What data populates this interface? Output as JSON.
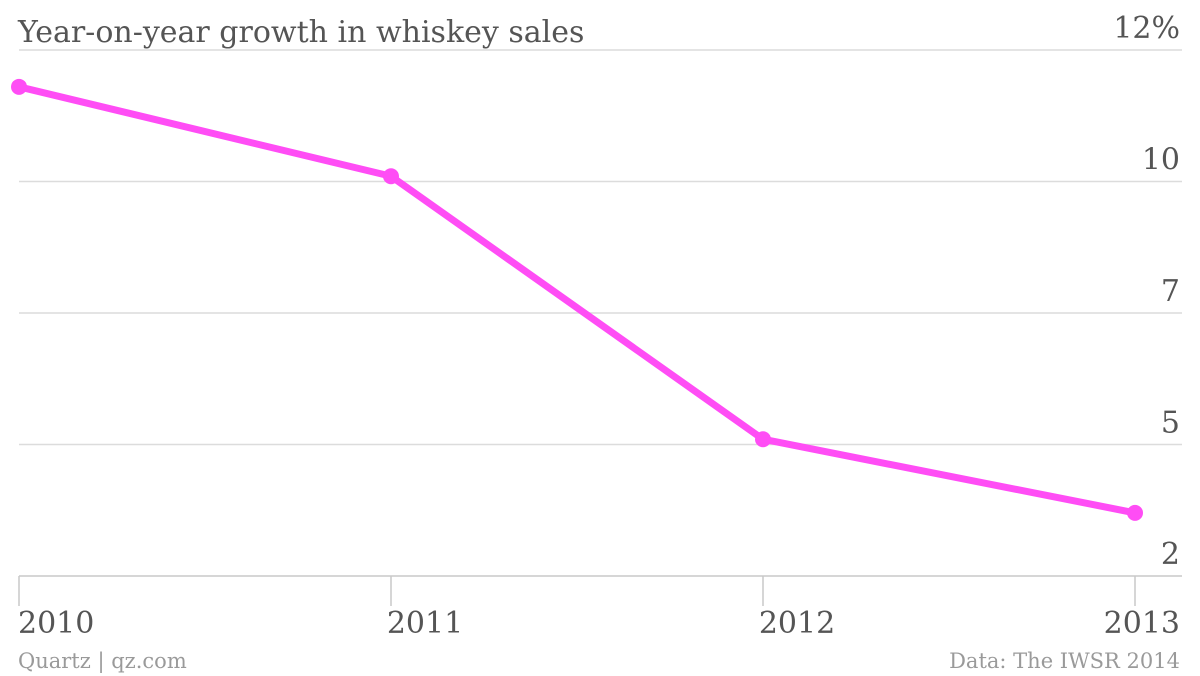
{
  "header": {
    "title": "Year-on-year growth in whiskey sales"
  },
  "footer": {
    "credit": "Quartz | qz.com",
    "source": "Data: The IWSR 2014"
  },
  "colors": {
    "series": "#ff4df5",
    "grid": "#dcdcdc",
    "text": "#555555",
    "footer_text": "#9a9a9a"
  },
  "chart_data": {
    "type": "line",
    "title": "Year-on-year growth in whiskey sales",
    "xlabel": "",
    "ylabel": "",
    "categories": [
      "2010",
      "2011",
      "2012",
      "2013"
    ],
    "series": [
      {
        "values": [
          11.3,
          9.6,
          4.6,
          3.2
        ]
      }
    ],
    "ylim": [
      2,
      12
    ],
    "y_ticks": [
      {
        "value": 12,
        "label": "12%"
      },
      {
        "value": 9.5,
        "label": "10"
      },
      {
        "value": 7,
        "label": "7"
      },
      {
        "value": 4.5,
        "label": "5"
      },
      {
        "value": 2,
        "label": "2"
      }
    ],
    "y_axis_side": "right",
    "grid": true,
    "legend": "none"
  }
}
